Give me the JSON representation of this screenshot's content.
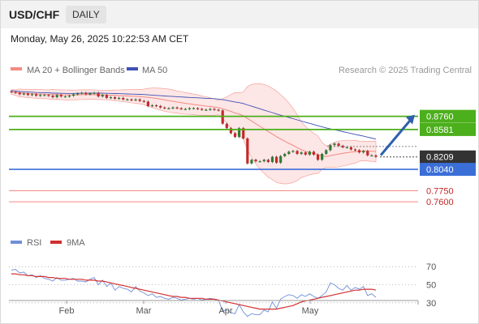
{
  "header": {
    "pair": "USD/CHF",
    "timeframe": "DAILY",
    "datetime": "Monday, May 26, 2025 10:22:53 AM CET"
  },
  "legend_top": {
    "bollinger_label": "MA 20 + Bollinger Bands",
    "ma50_label": "MA 50",
    "credit": "Research © 2025 Trading Central"
  },
  "legend_bottom": {
    "rsi_label": "RSI",
    "rsi_ma_label": "9MA"
  },
  "colors": {
    "up_candle": "#2e7d32",
    "down_candle": "#c62828",
    "bollinger": "#f28b82",
    "band_fill": "#fde4e4",
    "ma50": "#3f51b5",
    "resistance": "#4caf1c",
    "support": "#3b6fd8",
    "target_line": "#f28b82",
    "arrow": "#2f5fb0",
    "rsi": "#6f8fd8",
    "rsi_ma": "#d32f2f"
  },
  "chart_data": [
    {
      "type": "candlestick",
      "title": "USD/CHF",
      "timeframe": "DAILY",
      "x_tick_labels": [
        "Feb",
        "Mar",
        "Apr",
        "May"
      ],
      "current_price": 0.8209,
      "ylim": [
        0.748,
        0.88
      ],
      "close_series": [
        0.909,
        0.908,
        0.906,
        0.907,
        0.905,
        0.906,
        0.904,
        0.905,
        0.905,
        0.904,
        0.902,
        0.905,
        0.903,
        0.903,
        0.904,
        0.906,
        0.907,
        0.908,
        0.906,
        0.907,
        0.908,
        0.903,
        0.905,
        0.901,
        0.902,
        0.9,
        0.901,
        0.899,
        0.899,
        0.898,
        0.899,
        0.897,
        0.896,
        0.89,
        0.891,
        0.89,
        0.888,
        0.887,
        0.887,
        0.888,
        0.887,
        0.886,
        0.886,
        0.887,
        0.887,
        0.886,
        0.885,
        0.885,
        0.886,
        0.885,
        0.884,
        0.866,
        0.86,
        0.853,
        0.848,
        0.86,
        0.846,
        0.812,
        0.817,
        0.815,
        0.815,
        0.817,
        0.814,
        0.821,
        0.813,
        0.822,
        0.825,
        0.828,
        0.829,
        0.825,
        0.827,
        0.824,
        0.828,
        0.824,
        0.817,
        0.825,
        0.83,
        0.837,
        0.839,
        0.836,
        0.834,
        0.834,
        0.831,
        0.83,
        0.827,
        0.829,
        0.823,
        0.823,
        0.821
      ],
      "levels": [
        {
          "value": 0.876,
          "label": "0.8760",
          "kind": "resistance"
        },
        {
          "value": 0.8581,
          "label": "0.8581",
          "kind": "resistance"
        },
        {
          "value": 0.8209,
          "label": "0.8209",
          "kind": "last"
        },
        {
          "value": 0.804,
          "label": "0.8040",
          "kind": "support"
        },
        {
          "value": 0.775,
          "label": "0.7750",
          "kind": "target"
        },
        {
          "value": 0.76,
          "label": "0.7600",
          "kind": "target"
        }
      ],
      "forecast_arrow_target": 0.876
    },
    {
      "type": "line",
      "series": [
        {
          "name": "RSI",
          "values": [
            66,
            67,
            63,
            64,
            60,
            61,
            58,
            60,
            57,
            56,
            54,
            58,
            55,
            55,
            56,
            57,
            54,
            54,
            53,
            56,
            58,
            50,
            55,
            48,
            52,
            44,
            48,
            46,
            45,
            42,
            48,
            43,
            41,
            38,
            40,
            36,
            37,
            35,
            34,
            36,
            35,
            33,
            34,
            35,
            34,
            35,
            33,
            34,
            35,
            34,
            33,
            21,
            22,
            19,
            18,
            28,
            20,
            15,
            18,
            17,
            17,
            22,
            20,
            31,
            24,
            34,
            37,
            39,
            38,
            35,
            39,
            37,
            40,
            37,
            35,
            38,
            42,
            52,
            50,
            46,
            44,
            49,
            44,
            47,
            45,
            48,
            38,
            40,
            36
          ]
        },
        {
          "name": "9MA",
          "values": [
            62,
            62,
            61,
            61,
            60,
            60,
            59,
            59,
            59,
            58,
            58,
            57,
            57,
            57,
            56,
            56,
            56,
            56,
            55,
            55,
            55,
            54,
            54,
            53,
            52,
            51,
            50,
            49,
            48,
            47,
            46,
            45,
            44,
            43,
            42,
            41,
            40,
            39,
            38,
            37,
            37,
            36,
            36,
            35,
            35,
            35,
            35,
            34,
            34,
            34,
            33,
            32,
            31,
            30,
            29,
            28,
            27,
            26,
            25,
            24,
            23,
            23,
            23,
            23,
            23,
            24,
            25,
            26,
            27,
            29,
            31,
            32,
            33,
            34,
            35,
            36,
            37,
            38,
            39,
            40,
            41,
            42,
            43,
            44,
            44,
            45,
            45,
            45,
            44
          ]
        }
      ],
      "y_tick_labels": [
        "70",
        "50",
        "30"
      ],
      "ylim": [
        20,
        80
      ]
    }
  ]
}
